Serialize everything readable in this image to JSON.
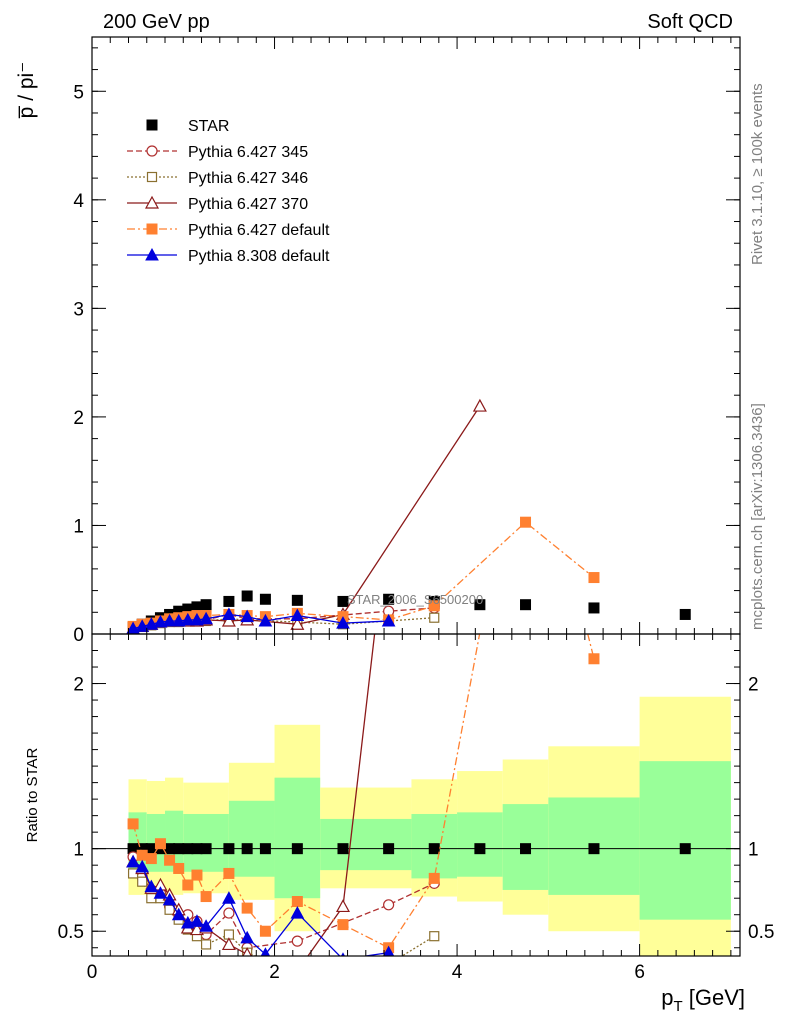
{
  "header": {
    "left": "200 GeV pp",
    "right": "Soft QCD"
  },
  "side_labels": {
    "rivet": "Rivet 3.1.10, ≥ 100k events",
    "mcplots": "mcplots.cern.ch [arXiv:1306.3436]"
  },
  "watermark": "STAR_2006_S6500200",
  "chart_data": {
    "type": "scatter",
    "ylabel_main": "p̅ / pi⁻",
    "ylabel_ratio": "Ratio to STAR",
    "xlabel": "p_T [GeV]",
    "xlim": [
      0,
      7.1
    ],
    "ylim_main": [
      0,
      5.5
    ],
    "ylim_ratio": [
      0.35,
      2.3
    ],
    "x_ticks": [
      0,
      2,
      4,
      6
    ],
    "y_ticks_main": [
      0,
      1,
      2,
      3,
      4,
      5
    ],
    "y_ticks_ratio": [
      0.5,
      1,
      2
    ],
    "ratio_bands": [
      {
        "x0": 0.4,
        "x1": 0.6,
        "g": [
          0.85,
          1.22
        ],
        "y": [
          0.72,
          1.42
        ]
      },
      {
        "x0": 0.6,
        "x1": 0.8,
        "g": [
          0.86,
          1.21
        ],
        "y": [
          0.73,
          1.41
        ]
      },
      {
        "x0": 0.8,
        "x1": 1.0,
        "g": [
          0.86,
          1.23
        ],
        "y": [
          0.72,
          1.43
        ]
      },
      {
        "x0": 1.0,
        "x1": 1.5,
        "g": [
          0.86,
          1.21
        ],
        "y": [
          0.73,
          1.4
        ]
      },
      {
        "x0": 1.5,
        "x1": 2.0,
        "g": [
          0.83,
          1.29
        ],
        "y": [
          0.69,
          1.52
        ]
      },
      {
        "x0": 2.0,
        "x1": 2.5,
        "g": [
          0.7,
          1.43
        ],
        "y": [
          0.5,
          1.75
        ]
      },
      {
        "x0": 2.5,
        "x1": 3.5,
        "g": [
          0.87,
          1.18
        ],
        "y": [
          0.76,
          1.37
        ]
      },
      {
        "x0": 3.5,
        "x1": 4.0,
        "g": [
          0.82,
          1.21
        ],
        "y": [
          0.71,
          1.42
        ]
      },
      {
        "x0": 4.0,
        "x1": 4.5,
        "g": [
          0.83,
          1.22
        ],
        "y": [
          0.68,
          1.47
        ]
      },
      {
        "x0": 4.5,
        "x1": 5.0,
        "g": [
          0.75,
          1.27
        ],
        "y": [
          0.6,
          1.54
        ]
      },
      {
        "x0": 5.0,
        "x1": 6.0,
        "g": [
          0.72,
          1.31
        ],
        "y": [
          0.5,
          1.62
        ]
      },
      {
        "x0": 6.0,
        "x1": 7.0,
        "g": [
          0.57,
          1.53
        ],
        "y": [
          0.35,
          1.92
        ]
      }
    ],
    "series": [
      {
        "name": "STAR",
        "color": "#000000",
        "marker": "square-filled",
        "line": "none",
        "x": [
          0.45,
          0.55,
          0.65,
          0.75,
          0.85,
          0.95,
          1.05,
          1.15,
          1.25,
          1.5,
          1.7,
          1.9,
          2.25,
          2.75,
          3.25,
          3.75,
          4.25,
          4.75,
          5.5,
          6.5
        ],
        "y": [
          0.06,
          0.09,
          0.12,
          0.15,
          0.18,
          0.21,
          0.23,
          0.25,
          0.27,
          0.3,
          0.35,
          0.32,
          0.31,
          0.3,
          0.32,
          0.3,
          0.27,
          0.27,
          0.24,
          0.18
        ],
        "ratio": [
          1,
          1,
          1,
          1,
          1,
          1,
          1,
          1,
          1,
          1,
          1,
          1,
          1,
          1,
          1,
          1,
          1,
          1,
          1,
          1
        ]
      },
      {
        "name": "Pythia 6.427 345",
        "color": "#b03030",
        "marker": "circle-open",
        "line": "dashed",
        "x": [
          0.45,
          0.55,
          0.65,
          0.75,
          0.85,
          0.95,
          1.05,
          1.15,
          1.25,
          1.5,
          1.7,
          2.25,
          3.25,
          3.75
        ],
        "y": [
          0.05,
          0.075,
          0.09,
          0.11,
          0.12,
          0.13,
          0.14,
          0.14,
          0.13,
          0.18,
          0.14,
          0.14,
          0.21,
          0.24
        ],
        "ratio": [
          0.95,
          0.83,
          0.75,
          0.73,
          0.65,
          0.6,
          0.6,
          0.56,
          0.48,
          0.61,
          0.4,
          0.44,
          0.66,
          0.79
        ]
      },
      {
        "name": "Pythia 6.427 346",
        "color": "#8a7030",
        "marker": "square-open",
        "line": "dotted",
        "x": [
          0.45,
          0.55,
          0.65,
          0.75,
          0.85,
          0.95,
          1.05,
          1.15,
          1.25,
          1.5,
          1.7,
          2.25,
          2.75,
          3.25,
          3.75
        ],
        "y": [
          0.05,
          0.065,
          0.08,
          0.1,
          0.11,
          0.11,
          0.12,
          0.12,
          0.12,
          0.14,
          0.13,
          0.11,
          0.09,
          0.12,
          0.15
        ],
        "ratio": [
          0.85,
          0.8,
          0.7,
          0.7,
          0.63,
          0.57,
          0.51,
          0.47,
          0.42,
          0.48,
          0.37,
          0.25,
          0.18,
          0.3,
          0.47
        ]
      },
      {
        "name": "Pythia 6.427 370",
        "color": "#8b1a1a",
        "marker": "triangle-open",
        "line": "solid",
        "x": [
          0.45,
          0.55,
          0.65,
          0.75,
          0.85,
          0.95,
          1.05,
          1.15,
          1.25,
          1.5,
          1.7,
          2.25,
          2.75,
          4.25
        ],
        "y": [
          0.05,
          0.07,
          0.09,
          0.11,
          0.12,
          0.12,
          0.12,
          0.12,
          0.13,
          0.12,
          0.13,
          0.09,
          0.18,
          2.1
        ],
        "ratio": [
          0.92,
          0.88,
          0.76,
          0.78,
          0.72,
          0.63,
          0.52,
          0.51,
          0.52,
          0.42,
          0.36,
          0.26,
          0.65,
          7.8
        ]
      },
      {
        "name": "Pythia 6.427 default",
        "color": "#ff8030",
        "marker": "square-filled",
        "line": "dashdot",
        "x": [
          0.45,
          0.55,
          0.65,
          0.75,
          0.85,
          0.95,
          1.05,
          1.15,
          1.25,
          1.5,
          1.7,
          1.9,
          2.25,
          2.75,
          3.25,
          3.75,
          4.75,
          5.5
        ],
        "y": [
          0.07,
          0.09,
          0.1,
          0.12,
          0.14,
          0.15,
          0.16,
          0.17,
          0.17,
          0.18,
          0.17,
          0.16,
          0.19,
          0.16,
          0.13,
          0.26,
          1.03,
          0.52
        ],
        "ratio": [
          1.15,
          0.96,
          0.94,
          1.03,
          0.93,
          0.88,
          0.78,
          0.84,
          0.71,
          0.85,
          0.64,
          0.5,
          0.68,
          0.54,
          0.4,
          0.82,
          3.8,
          2.15
        ]
      },
      {
        "name": "Pythia 8.308 default",
        "color": "#0000dd",
        "marker": "triangle-filled",
        "line": "solid",
        "x": [
          0.45,
          0.55,
          0.65,
          0.75,
          0.85,
          0.95,
          1.05,
          1.15,
          1.25,
          1.5,
          1.7,
          1.9,
          2.25,
          2.75,
          3.25
        ],
        "y": [
          0.05,
          0.07,
          0.09,
          0.11,
          0.12,
          0.12,
          0.13,
          0.13,
          0.14,
          0.18,
          0.16,
          0.12,
          0.17,
          0.1,
          0.12
        ],
        "ratio": [
          0.92,
          0.89,
          0.77,
          0.73,
          0.69,
          0.6,
          0.55,
          0.56,
          0.53,
          0.7,
          0.46,
          0.36,
          0.61,
          0.33,
          0.37
        ]
      }
    ],
    "legend": {
      "position": "top-left"
    }
  }
}
